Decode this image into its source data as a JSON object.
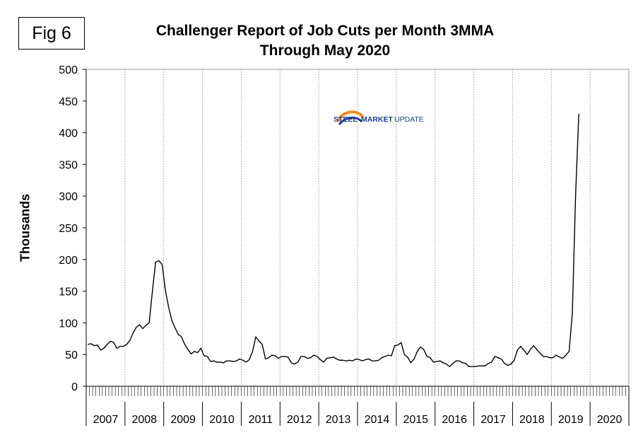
{
  "fig_label": "Fig 6",
  "logo": {
    "word1": "STEEL",
    "word2": "MARKET",
    "word3": "UPDATE",
    "color_primary": "#1f3d8a",
    "color_accent": "#f28c1e"
  },
  "chart_data": {
    "type": "line",
    "title": "Challenger Report of Job Cuts per Month 3MMA",
    "subtitle": "Through May 2020",
    "xlabel": "",
    "ylabel": "Thousands",
    "ylim": [
      0,
      500
    ],
    "yticks": [
      0,
      50,
      100,
      150,
      200,
      250,
      300,
      350,
      400,
      450,
      500
    ],
    "x_categories": [
      "2007",
      "2008",
      "2009",
      "2010",
      "2011",
      "2012",
      "2013",
      "2014",
      "2015",
      "2016",
      "2017",
      "2018",
      "2019",
      "2020"
    ],
    "grid": {
      "vertical": true,
      "horizontal": false,
      "style": "dotted"
    },
    "line_color": "#000000",
    "series": [
      {
        "frequency": "monthly",
        "start": "Jan 2007",
        "end": "May 2020",
        "values": [
          66,
          67,
          64,
          65,
          57,
          60,
          66,
          71,
          69,
          60,
          63,
          63,
          66,
          72,
          84,
          93,
          97,
          91,
          96,
          100,
          150,
          196,
          198,
          192,
          152,
          125,
          104,
          92,
          82,
          78,
          66,
          58,
          51,
          55,
          53,
          60,
          48,
          47,
          39,
          40,
          38,
          38,
          37,
          40,
          40,
          39,
          40,
          43,
          41,
          38,
          42,
          55,
          78,
          71,
          66,
          43,
          45,
          49,
          48,
          44,
          47,
          47,
          46,
          37,
          35,
          38,
          47,
          47,
          44,
          45,
          49,
          47,
          42,
          38,
          44,
          45,
          46,
          43,
          41,
          41,
          40,
          41,
          40,
          43,
          42,
          40,
          42,
          43,
          40,
          40,
          41,
          45,
          47,
          49,
          48,
          64,
          65,
          69,
          50,
          46,
          37,
          43,
          55,
          62,
          58,
          47,
          45,
          38,
          39,
          40,
          37,
          35,
          31,
          36,
          40,
          40,
          37,
          36,
          31,
          31,
          31,
          32,
          32,
          32,
          36,
          38,
          47,
          45,
          43,
          36,
          33,
          35,
          41,
          57,
          63,
          57,
          50,
          58,
          64,
          58,
          52,
          47,
          47,
          45,
          45,
          49,
          46,
          44,
          49,
          55,
          115,
          300,
          430
        ]
      }
    ]
  }
}
